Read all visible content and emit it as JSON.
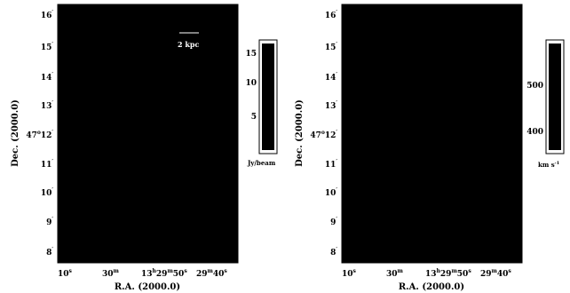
{
  "panels": [
    {
      "ylabel": "Dec. (2000.0)",
      "xlabel": "R.A. (2000.0)",
      "scalebar": "2 kpc",
      "colorbar": {
        "ticks": [
          "15",
          "10",
          "5"
        ],
        "unit": "Jy/beam"
      }
    },
    {
      "ylabel": "Dec. (2000.0)",
      "xlabel": "R.A. (2000.0)",
      "colorbar": {
        "ticks": [
          "500",
          "400"
        ],
        "unit_main": "km s",
        "unit_exp": "-1"
      }
    }
  ],
  "yticks": [
    "16",
    "15",
    "14",
    "13",
    "12",
    "11",
    "10",
    "9",
    "8"
  ],
  "ytick_deg": "47",
  "xticks": [
    {
      "main": "10",
      "sup": "s"
    },
    {
      "main": "30",
      "sup": "m"
    },
    {
      "main": "13",
      "sup": "h",
      "main2": "29",
      "sup2": "m",
      "main3": "50",
      "sup3": "s"
    },
    {
      "main": "29",
      "sup": "m",
      "main2": "40",
      "sup2": "s"
    }
  ],
  "colors": {
    "image_fill": "#000000",
    "frame": "#000000",
    "scalebar": "#ffffff"
  }
}
